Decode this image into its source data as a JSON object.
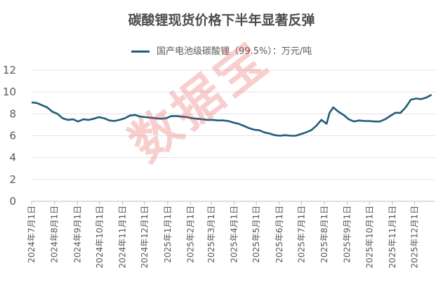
{
  "chart_data": {
    "type": "line",
    "title": "碳酸锂现货价格下半年显著反弹",
    "series": [
      {
        "name": "国产电池级碳酸锂（99.5%）：万元/吨",
        "color": "#1f5c7a",
        "points": [
          [
            "2024-07-01",
            9.05
          ],
          [
            "2024-07-08",
            9.0
          ],
          [
            "2024-07-15",
            8.8
          ],
          [
            "2024-07-22",
            8.6
          ],
          [
            "2024-07-29",
            8.2
          ],
          [
            "2024-08-05",
            8.0
          ],
          [
            "2024-08-12",
            7.6
          ],
          [
            "2024-08-19",
            7.45
          ],
          [
            "2024-08-26",
            7.5
          ],
          [
            "2024-09-02",
            7.3
          ],
          [
            "2024-09-09",
            7.5
          ],
          [
            "2024-09-16",
            7.45
          ],
          [
            "2024-09-23",
            7.55
          ],
          [
            "2024-09-30",
            7.7
          ],
          [
            "2024-10-07",
            7.6
          ],
          [
            "2024-10-14",
            7.4
          ],
          [
            "2024-10-21",
            7.35
          ],
          [
            "2024-10-28",
            7.45
          ],
          [
            "2024-11-04",
            7.6
          ],
          [
            "2024-11-11",
            7.85
          ],
          [
            "2024-11-18",
            7.9
          ],
          [
            "2024-11-25",
            7.75
          ],
          [
            "2024-12-02",
            7.7
          ],
          [
            "2024-12-09",
            7.65
          ],
          [
            "2024-12-16",
            7.6
          ],
          [
            "2024-12-23",
            7.55
          ],
          [
            "2024-12-30",
            7.6
          ],
          [
            "2025-01-06",
            7.8
          ],
          [
            "2025-01-13",
            7.8
          ],
          [
            "2025-01-20",
            7.75
          ],
          [
            "2025-01-27",
            7.7
          ],
          [
            "2025-02-03",
            7.6
          ],
          [
            "2025-02-10",
            7.55
          ],
          [
            "2025-02-17",
            7.5
          ],
          [
            "2025-02-24",
            7.45
          ],
          [
            "2025-03-03",
            7.45
          ],
          [
            "2025-03-10",
            7.4
          ],
          [
            "2025-03-17",
            7.4
          ],
          [
            "2025-03-24",
            7.35
          ],
          [
            "2025-03-31",
            7.2
          ],
          [
            "2025-04-07",
            7.1
          ],
          [
            "2025-04-14",
            6.9
          ],
          [
            "2025-04-21",
            6.7
          ],
          [
            "2025-04-28",
            6.55
          ],
          [
            "2025-05-05",
            6.5
          ],
          [
            "2025-05-12",
            6.3
          ],
          [
            "2025-05-19",
            6.2
          ],
          [
            "2025-05-26",
            6.05
          ],
          [
            "2025-06-02",
            6.0
          ],
          [
            "2025-06-09",
            6.05
          ],
          [
            "2025-06-16",
            6.0
          ],
          [
            "2025-06-23",
            6.0
          ],
          [
            "2025-06-30",
            6.15
          ],
          [
            "2025-07-07",
            6.3
          ],
          [
            "2025-07-14",
            6.5
          ],
          [
            "2025-07-21",
            6.9
          ],
          [
            "2025-07-28",
            7.45
          ],
          [
            "2025-08-04",
            7.1
          ],
          [
            "2025-08-08",
            8.1
          ],
          [
            "2025-08-13",
            8.6
          ],
          [
            "2025-08-20",
            8.2
          ],
          [
            "2025-08-27",
            7.9
          ],
          [
            "2025-09-03",
            7.5
          ],
          [
            "2025-09-10",
            7.3
          ],
          [
            "2025-09-17",
            7.4
          ],
          [
            "2025-09-24",
            7.35
          ],
          [
            "2025-10-01",
            7.35
          ],
          [
            "2025-10-08",
            7.3
          ],
          [
            "2025-10-15",
            7.3
          ],
          [
            "2025-10-22",
            7.5
          ],
          [
            "2025-10-29",
            7.8
          ],
          [
            "2025-11-05",
            8.1
          ],
          [
            "2025-11-12",
            8.1
          ],
          [
            "2025-11-19",
            8.6
          ],
          [
            "2025-11-26",
            9.3
          ],
          [
            "2025-12-03",
            9.4
          ],
          [
            "2025-12-10",
            9.35
          ],
          [
            "2025-12-17",
            9.5
          ],
          [
            "2025-12-24",
            9.75
          ]
        ]
      }
    ],
    "ylim": [
      0,
      12
    ],
    "yticks": [
      "0",
      "2",
      "4",
      "6",
      "8",
      "10",
      "12"
    ],
    "xticks": [
      [
        "2024-07-01",
        "2024年7月1日"
      ],
      [
        "2024-08-01",
        "2024年8月1日"
      ],
      [
        "2024-09-01",
        "2024年9月1日"
      ],
      [
        "2024-10-01",
        "2024年10月1日"
      ],
      [
        "2024-11-01",
        "2024年11月1日"
      ],
      [
        "2024-12-01",
        "2024年12月1日"
      ],
      [
        "2025-01-01",
        "2025年1月1日"
      ],
      [
        "2025-02-01",
        "2025年2月1日"
      ],
      [
        "2025-03-01",
        "2025年3月1日"
      ],
      [
        "2025-04-01",
        "2025年4月1日"
      ],
      [
        "2025-05-01",
        "2025年5月1日"
      ],
      [
        "2025-06-01",
        "2025年6月1日"
      ],
      [
        "2025-07-01",
        "2025年7月1日"
      ],
      [
        "2025-08-01",
        "2025年8月1日"
      ],
      [
        "2025-09-01",
        "2025年9月1日"
      ],
      [
        "2025-10-01",
        "2025年10月1日"
      ],
      [
        "2025-11-01",
        "2025年11月1日"
      ],
      [
        "2025-12-01",
        "2025年12月1日"
      ]
    ],
    "xrange": [
      "2024-07-01",
      "2025-12-29"
    ],
    "grid": "horizontal",
    "legend_position": "top-center"
  },
  "watermark": "数据宝"
}
